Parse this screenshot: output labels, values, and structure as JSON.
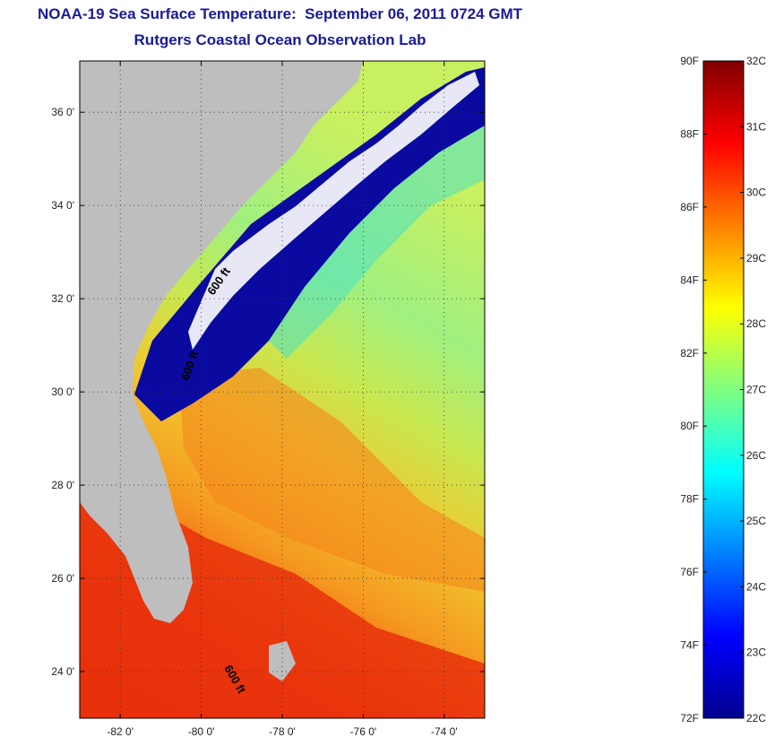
{
  "title_line1": "NOAA-19 Sea Surface Temperature:  September 06, 2011 0724 GMT",
  "title_line2": "Rutgers Coastal Ocean Observation Lab",
  "map": {
    "lon_range": [
      -83.0,
      -73.0
    ],
    "lat_range": [
      23.0,
      37.1
    ],
    "lat_ticks": [
      {
        "value": 24,
        "label": "24 0'"
      },
      {
        "value": 26,
        "label": "26 0'"
      },
      {
        "value": 28,
        "label": "28 0'"
      },
      {
        "value": 30,
        "label": "30 0'"
      },
      {
        "value": 32,
        "label": "32 0'"
      },
      {
        "value": 34,
        "label": "34 0'"
      },
      {
        "value": 36,
        "label": "36 0'"
      }
    ],
    "lon_ticks": [
      {
        "value": -82,
        "label": "-82 0'"
      },
      {
        "value": -80,
        "label": "-80 0'"
      },
      {
        "value": -78,
        "label": "-78 0'"
      },
      {
        "value": -76,
        "label": "-76 0'"
      },
      {
        "value": -74,
        "label": "-74 0'"
      }
    ],
    "grid": "dotted",
    "land_color": "#bebebe",
    "cloud_color": "#ffffff",
    "contour_labels": [
      "600 ft",
      "600 ft",
      "600 ft"
    ]
  },
  "colorbar": {
    "f_ticks": [
      {
        "value": 72,
        "label": "72F"
      },
      {
        "value": 74,
        "label": "74F"
      },
      {
        "value": 76,
        "label": "76F"
      },
      {
        "value": 78,
        "label": "78F"
      },
      {
        "value": 80,
        "label": "80F"
      },
      {
        "value": 82,
        "label": "82F"
      },
      {
        "value": 84,
        "label": "84F"
      },
      {
        "value": 86,
        "label": "86F"
      },
      {
        "value": 88,
        "label": "88F"
      },
      {
        "value": 90,
        "label": "90F"
      }
    ],
    "c_ticks": [
      {
        "value": 22,
        "label": "22C"
      },
      {
        "value": 23,
        "label": "23C"
      },
      {
        "value": 24,
        "label": "24C"
      },
      {
        "value": 25,
        "label": "25C"
      },
      {
        "value": 26,
        "label": "26C"
      },
      {
        "value": 27,
        "label": "27C"
      },
      {
        "value": 28,
        "label": "28C"
      },
      {
        "value": 29,
        "label": "29C"
      },
      {
        "value": 30,
        "label": "30C"
      },
      {
        "value": 31,
        "label": "31C"
      },
      {
        "value": 32,
        "label": "32C"
      }
    ],
    "colors": [
      "#00008f",
      "#0000ff",
      "#0080ff",
      "#00ffff",
      "#80ff80",
      "#ffff00",
      "#ff8000",
      "#ff0000",
      "#800000"
    ]
  }
}
